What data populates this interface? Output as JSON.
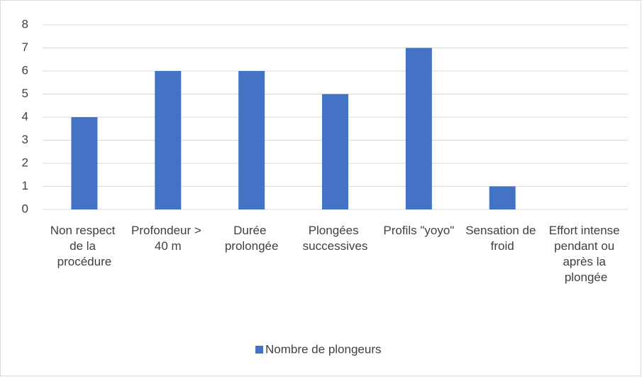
{
  "chart_data": {
    "type": "bar",
    "categories": [
      "Non respect de la procédure",
      "Profondeur > 40 m",
      "Durée prolongée",
      "Plongées successives",
      "Profils \"yoyo\"",
      "Sensation de froid",
      "Effort intense pendant ou après la plongée"
    ],
    "series": [
      {
        "name": "Nombre de plongeurs",
        "color": "#4472c4",
        "values": [
          4,
          6,
          6,
          5,
          7,
          1,
          0
        ]
      }
    ],
    "ylim": [
      0,
      8
    ],
    "yticks": [
      0,
      1,
      2,
      3,
      4,
      5,
      6,
      7,
      8
    ],
    "grid": true,
    "legend": "bottom"
  }
}
